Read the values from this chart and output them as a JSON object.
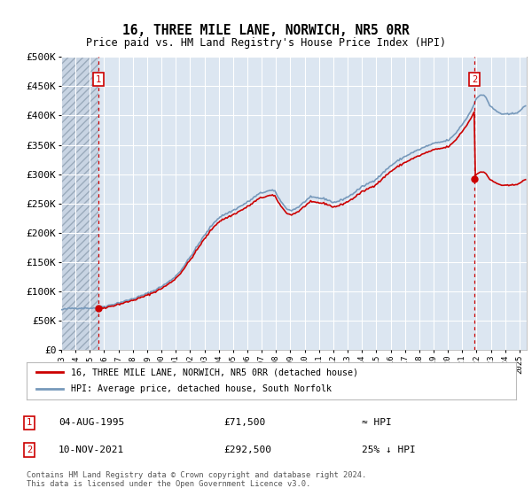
{
  "title": "16, THREE MILE LANE, NORWICH, NR5 0RR",
  "subtitle": "Price paid vs. HM Land Registry's House Price Index (HPI)",
  "ylim": [
    0,
    500000
  ],
  "yticks": [
    0,
    50000,
    100000,
    150000,
    200000,
    250000,
    300000,
    350000,
    400000,
    450000,
    500000
  ],
  "ytick_labels": [
    "£0",
    "£50K",
    "£100K",
    "£150K",
    "£200K",
    "£250K",
    "£300K",
    "£350K",
    "£400K",
    "£450K",
    "£500K"
  ],
  "background_color": "#ffffff",
  "plot_bg_color": "#dce6f1",
  "grid_color": "#ffffff",
  "point1_x": 1995.586,
  "point1_y": 71500,
  "point2_x": 2021.858,
  "point2_y": 292500,
  "line_color_red": "#cc0000",
  "line_color_blue": "#7799bb",
  "annotation_box_color": "#cc0000",
  "legend_label_red": "16, THREE MILE LANE, NORWICH, NR5 0RR (detached house)",
  "legend_label_blue": "HPI: Average price, detached house, South Norfolk",
  "note1_date": "04-AUG-1995",
  "note1_price": "£71,500",
  "note1_hpi": "≈ HPI",
  "note2_date": "10-NOV-2021",
  "note2_price": "£292,500",
  "note2_hpi": "25% ↓ HPI",
  "footer": "Contains HM Land Registry data © Crown copyright and database right 2024.\nThis data is licensed under the Open Government Licence v3.0.",
  "xmin": 1993.0,
  "xmax": 2025.5,
  "hatch_end": 1995.586
}
